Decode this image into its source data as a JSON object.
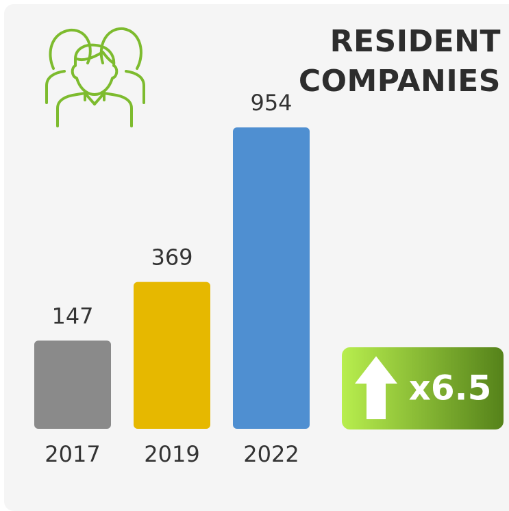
{
  "chart_data": {
    "type": "bar",
    "title": "RESIDENT COMPANIES",
    "categories": [
      "2017",
      "2019",
      "2022"
    ],
    "values": [
      147,
      369,
      954
    ],
    "colors": [
      "#8a8a8a",
      "#e6b800",
      "#4f8fd1"
    ],
    "annotation": "x6.5"
  }
}
